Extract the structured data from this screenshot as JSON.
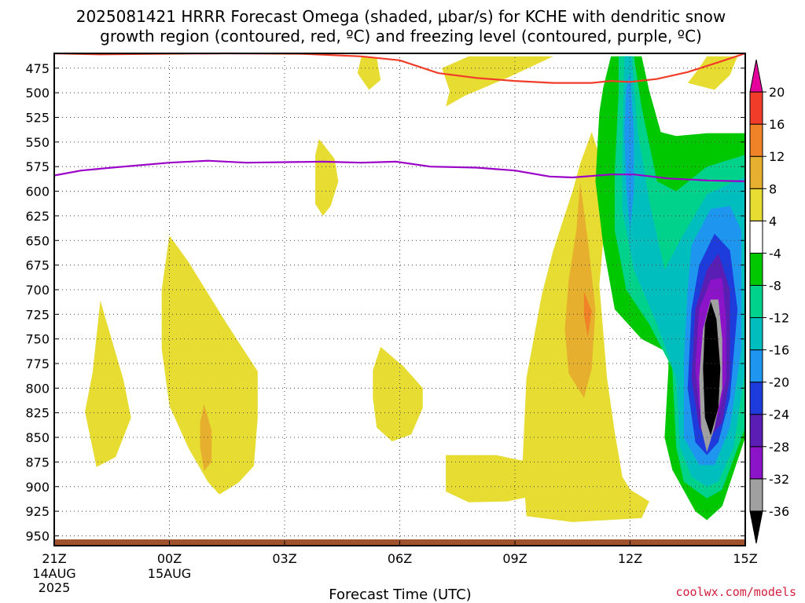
{
  "chart_data": {
    "type": "contour",
    "title_line1": "2025081421 HRRR Forecast Omega (shaded, μbar/s) for KCHE with dendritic snow",
    "title_line2": "growth region (contoured, red, ºC) and freezing level (contoured, purple, ºC)",
    "xlabel": "Forecast Time (UTC)",
    "credit": "coolwx.com/models",
    "x_ticks": [
      {
        "hour": 0,
        "label": "21Z",
        "sub1": "14AUG",
        "sub2": "2025"
      },
      {
        "hour": 3,
        "label": "00Z",
        "sub1": "15AUG",
        "sub2": ""
      },
      {
        "hour": 6,
        "label": "03Z",
        "sub1": "",
        "sub2": ""
      },
      {
        "hour": 9,
        "label": "06Z",
        "sub1": "",
        "sub2": ""
      },
      {
        "hour": 12,
        "label": "09Z",
        "sub1": "",
        "sub2": ""
      },
      {
        "hour": 15,
        "label": "12Z",
        "sub1": "",
        "sub2": ""
      },
      {
        "hour": 18,
        "label": "15Z",
        "sub1": "",
        "sub2": ""
      }
    ],
    "y_ticks": [
      475,
      500,
      525,
      550,
      575,
      600,
      625,
      650,
      675,
      700,
      725,
      750,
      775,
      800,
      825,
      850,
      875,
      900,
      925,
      950
    ],
    "y_range_hpa": [
      460,
      960
    ],
    "x_range_hours": [
      0,
      18
    ],
    "grid": true,
    "colorbar": {
      "levels": [
        -36,
        -32,
        -28,
        -24,
        -20,
        -16,
        -12,
        -8,
        -4,
        4,
        8,
        12,
        16,
        20
      ],
      "colors": [
        "#000000",
        "#a0a0a0",
        "#8c14c8",
        "#5a1eb4",
        "#1e3cdc",
        "#1e96f0",
        "#00bebe",
        "#00d28c",
        "#00c800",
        "#ffffff",
        "#e6dc32",
        "#e6af2d",
        "#f08228",
        "#f03c28",
        "#e6009b"
      ]
    },
    "surface_color": "#a0522d",
    "freezing_level": {
      "name": "freezing level",
      "color": "#9b00c8",
      "points": [
        [
          0,
          584
        ],
        [
          0.7,
          579
        ],
        [
          1.5,
          576
        ],
        [
          3,
          571
        ],
        [
          4,
          569
        ],
        [
          5,
          571
        ],
        [
          7,
          570
        ],
        [
          8,
          571
        ],
        [
          8.9,
          570
        ],
        [
          9.8,
          575
        ],
        [
          11,
          576
        ],
        [
          12,
          579
        ],
        [
          12.9,
          585
        ],
        [
          13.5,
          586
        ],
        [
          14.5,
          583
        ],
        [
          15.1,
          583
        ],
        [
          16,
          587
        ],
        [
          17,
          589
        ],
        [
          18,
          590
        ]
      ]
    },
    "dgz_top": {
      "name": "dendritic snow growth region",
      "color": "#f03c28",
      "points": [
        [
          0,
          460
        ],
        [
          1.2,
          461
        ],
        [
          2.5,
          460.5
        ],
        [
          4.5,
          460
        ],
        [
          6.5,
          460.5
        ],
        [
          8,
          463
        ],
        [
          9,
          467
        ],
        [
          10,
          480
        ],
        [
          11,
          485
        ],
        [
          12,
          488
        ],
        [
          13,
          490
        ],
        [
          14,
          490
        ],
        [
          14.5,
          488
        ],
        [
          15,
          489
        ],
        [
          15.7,
          486
        ],
        [
          16.5,
          479
        ],
        [
          17.3,
          469
        ],
        [
          18,
          460
        ]
      ]
    },
    "omega_regions": [
      {
        "value": "4 to 8",
        "color": "#e6dc32",
        "points": [
          [
            1.2,
            711
          ],
          [
            1.8,
            791
          ],
          [
            2.0,
            830
          ],
          [
            1.6,
            870
          ],
          [
            1.1,
            880
          ],
          [
            0.8,
            824
          ],
          [
            1.0,
            784
          ]
        ]
      },
      {
        "value": "4 to 8",
        "color": "#e6dc32",
        "points": [
          [
            3.0,
            645
          ],
          [
            3.5,
            672
          ],
          [
            4.5,
            735
          ],
          [
            5.3,
            783
          ],
          [
            5.3,
            830
          ],
          [
            5.2,
            879
          ],
          [
            4.8,
            896
          ],
          [
            4.3,
            908
          ],
          [
            4.0,
            895
          ],
          [
            3.5,
            861
          ],
          [
            3.0,
            818
          ],
          [
            2.8,
            760
          ],
          [
            2.8,
            700
          ]
        ]
      },
      {
        "value": "8 to 12",
        "color": "#e6af2d",
        "points": [
          [
            3.9,
            816
          ],
          [
            4.1,
            843
          ],
          [
            4.1,
            875
          ],
          [
            3.9,
            884
          ],
          [
            3.8,
            860
          ],
          [
            3.8,
            835
          ]
        ]
      },
      {
        "value": "4 to 8",
        "color": "#e6dc32",
        "points": [
          [
            6.9,
            547
          ],
          [
            7.3,
            567
          ],
          [
            7.4,
            590
          ],
          [
            7.2,
            615
          ],
          [
            7.0,
            625
          ],
          [
            6.8,
            613
          ],
          [
            6.8,
            590
          ],
          [
            6.8,
            563
          ]
        ]
      },
      {
        "value": "4 to 8",
        "color": "#e6dc32",
        "points": [
          [
            8.0,
            463
          ],
          [
            8.4,
            464
          ],
          [
            8.5,
            487
          ],
          [
            8.2,
            497
          ],
          [
            7.9,
            480
          ]
        ]
      },
      {
        "value": "4 to 8",
        "color": "#e6dc32",
        "points": [
          [
            8.5,
            758
          ],
          [
            9.1,
            778
          ],
          [
            9.6,
            800
          ],
          [
            9.6,
            820
          ],
          [
            9.3,
            847
          ],
          [
            8.8,
            854
          ],
          [
            8.4,
            840
          ],
          [
            8.3,
            810
          ],
          [
            8.3,
            782
          ]
        ]
      },
      {
        "value": "4 to 8",
        "color": "#e6dc32",
        "points": [
          [
            10.8,
            463
          ],
          [
            12.0,
            463
          ],
          [
            13.0,
            463
          ],
          [
            11.8,
            485
          ],
          [
            10.7,
            503
          ],
          [
            10.2,
            514
          ],
          [
            10.3,
            498
          ],
          [
            10.1,
            475
          ]
        ]
      },
      {
        "value": "4 to 8",
        "color": "#e6dc32",
        "points": [
          [
            10.2,
            868
          ],
          [
            11.5,
            868
          ],
          [
            12.5,
            876
          ],
          [
            13.0,
            888
          ],
          [
            12.9,
            906
          ],
          [
            11.8,
            915
          ],
          [
            10.8,
            916
          ],
          [
            10.2,
            905
          ]
        ]
      },
      {
        "value": "4 to 8",
        "color": "#e6dc32",
        "points": [
          [
            14.0,
            540
          ],
          [
            14.3,
            575
          ],
          [
            14.3,
            650
          ],
          [
            14.2,
            695
          ],
          [
            14.4,
            790
          ],
          [
            14.6,
            845
          ],
          [
            14.8,
            890
          ],
          [
            15.0,
            903
          ],
          [
            15.5,
            915
          ],
          [
            15.3,
            932
          ],
          [
            13.5,
            936
          ],
          [
            12.3,
            930
          ],
          [
            12.2,
            875
          ],
          [
            12.3,
            790
          ],
          [
            12.7,
            705
          ],
          [
            13.0,
            660
          ],
          [
            13.5,
            600
          ],
          [
            13.7,
            572
          ]
        ]
      },
      {
        "value": "8 to 12",
        "color": "#e6af2d",
        "points": [
          [
            13.7,
            591
          ],
          [
            13.9,
            650
          ],
          [
            14.1,
            720
          ],
          [
            14.0,
            780
          ],
          [
            13.8,
            810
          ],
          [
            13.4,
            785
          ],
          [
            13.3,
            740
          ],
          [
            13.4,
            690
          ],
          [
            13.6,
            640
          ]
        ]
      },
      {
        "value": "12 to 16",
        "color": "#f08228",
        "points": [
          [
            13.8,
            702
          ],
          [
            14.0,
            722
          ],
          [
            13.9,
            748
          ],
          [
            13.8,
            726
          ]
        ]
      },
      {
        "value": "4 to 8",
        "color": "#e6dc32",
        "points": [
          [
            17.0,
            463
          ],
          [
            17.8,
            463
          ],
          [
            17.6,
            482
          ],
          [
            17.2,
            497
          ],
          [
            16.5,
            490
          ],
          [
            16.8,
            475
          ]
        ]
      },
      {
        "value": "-8 to -4",
        "color": "#00c800",
        "points": [
          [
            14.5,
            463
          ],
          [
            15.3,
            463
          ],
          [
            15.5,
            498
          ],
          [
            15.8,
            540
          ],
          [
            16.2,
            544
          ],
          [
            17.0,
            541
          ],
          [
            18.0,
            541
          ],
          [
            18.0,
            850
          ],
          [
            17.4,
            920
          ],
          [
            17.0,
            934
          ],
          [
            16.7,
            925
          ],
          [
            16.1,
            883
          ],
          [
            15.9,
            850
          ],
          [
            16.0,
            780
          ],
          [
            16.0,
            764
          ],
          [
            15.3,
            750
          ],
          [
            14.6,
            720
          ],
          [
            14.3,
            655
          ],
          [
            14.1,
            590
          ],
          [
            14.2,
            520
          ],
          [
            14.3,
            495
          ]
        ]
      },
      {
        "value": "-12 to -8",
        "color": "#00d28c",
        "points": [
          [
            14.7,
            463
          ],
          [
            15.1,
            463
          ],
          [
            15.3,
            515
          ],
          [
            15.7,
            590
          ],
          [
            16.2,
            600
          ],
          [
            17.0,
            575
          ],
          [
            18.0,
            563
          ],
          [
            18.0,
            840
          ],
          [
            17.4,
            903
          ],
          [
            17.0,
            912
          ],
          [
            16.4,
            895
          ],
          [
            16.2,
            860
          ],
          [
            16.1,
            780
          ],
          [
            15.5,
            735
          ],
          [
            14.9,
            700
          ],
          [
            14.6,
            640
          ],
          [
            14.6,
            580
          ],
          [
            14.7,
            500
          ]
        ]
      },
      {
        "value": "-16 to -12",
        "color": "#00bebe",
        "points": [
          [
            14.85,
            463
          ],
          [
            15.05,
            463
          ],
          [
            15.2,
            540
          ],
          [
            15.5,
            610
          ],
          [
            15.9,
            680
          ],
          [
            16.3,
            650
          ],
          [
            17.0,
            603
          ],
          [
            18.0,
            585
          ],
          [
            18.0,
            780
          ],
          [
            17.7,
            860
          ],
          [
            17.3,
            895
          ],
          [
            17.0,
            900
          ],
          [
            16.6,
            890
          ],
          [
            16.3,
            860
          ],
          [
            16.2,
            790
          ],
          [
            15.7,
            735
          ],
          [
            15.1,
            680
          ],
          [
            14.8,
            620
          ],
          [
            14.8,
            540
          ]
        ]
      },
      {
        "value": "-20 to -16",
        "color": "#1e96f0",
        "points": [
          [
            14.9,
            495
          ],
          [
            15.0,
            480
          ],
          [
            15.1,
            540
          ],
          [
            15.1,
            600
          ],
          [
            15.0,
            640
          ],
          [
            14.9,
            595
          ],
          [
            14.85,
            540
          ]
        ]
      },
      {
        "value": "-20 to -16",
        "color": "#1e96f0",
        "points": [
          [
            16.6,
            655
          ],
          [
            17.1,
            618
          ],
          [
            17.6,
            615
          ],
          [
            17.9,
            640
          ],
          [
            17.9,
            760
          ],
          [
            17.6,
            840
          ],
          [
            17.2,
            878
          ],
          [
            16.8,
            878
          ],
          [
            16.4,
            850
          ],
          [
            16.4,
            770
          ],
          [
            16.5,
            700
          ]
        ]
      },
      {
        "value": "-24 to -20",
        "color": "#1e3cdc",
        "points": [
          [
            16.8,
            675
          ],
          [
            17.2,
            643
          ],
          [
            17.6,
            660
          ],
          [
            17.8,
            720
          ],
          [
            17.6,
            810
          ],
          [
            17.3,
            855
          ],
          [
            17.0,
            868
          ],
          [
            16.7,
            855
          ],
          [
            16.5,
            800
          ],
          [
            16.6,
            720
          ]
        ]
      },
      {
        "value": "-28 to -24",
        "color": "#5a1eb4",
        "points": [
          [
            17.0,
            680
          ],
          [
            17.3,
            663
          ],
          [
            17.6,
            700
          ],
          [
            17.6,
            790
          ],
          [
            17.4,
            835
          ],
          [
            17.0,
            853
          ],
          [
            16.8,
            840
          ],
          [
            16.6,
            790
          ],
          [
            16.7,
            720
          ]
        ]
      },
      {
        "value": "-32 to -28",
        "color": "#8c14c8",
        "points": [
          [
            17.1,
            690
          ],
          [
            17.4,
            688
          ],
          [
            17.5,
            730
          ],
          [
            17.5,
            790
          ],
          [
            17.3,
            828
          ],
          [
            17.0,
            840
          ],
          [
            16.8,
            820
          ],
          [
            16.7,
            780
          ],
          [
            16.8,
            720
          ]
        ]
      },
      {
        "value": "-36 to -32",
        "color": "#a0a0a0",
        "points": [
          [
            17.1,
            710
          ],
          [
            17.3,
            710
          ],
          [
            17.4,
            750
          ],
          [
            17.4,
            800
          ],
          [
            17.2,
            840
          ],
          [
            17.0,
            865
          ],
          [
            16.85,
            840
          ],
          [
            16.8,
            790
          ],
          [
            16.9,
            740
          ]
        ]
      },
      {
        "value": "< -36",
        "color": "#000000",
        "points": [
          [
            17.1,
            712
          ],
          [
            17.25,
            730
          ],
          [
            17.35,
            780
          ],
          [
            17.3,
            820
          ],
          [
            17.1,
            848
          ],
          [
            16.95,
            830
          ],
          [
            16.9,
            780
          ],
          [
            16.95,
            735
          ]
        ]
      }
    ]
  }
}
